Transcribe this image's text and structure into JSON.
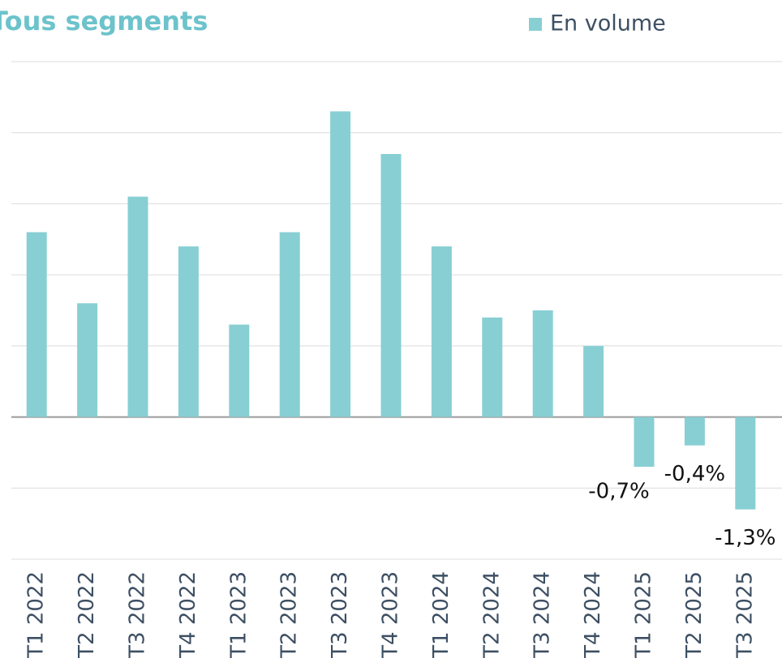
{
  "chart_data": {
    "type": "bar",
    "title": "Tous segments",
    "categories": [
      "T1 2022",
      "T2 2022",
      "T3 2022",
      "T4 2022",
      "T1 2023",
      "T2 2023",
      "T3 2023",
      "T4 2023",
      "T1 2024",
      "T2 2024",
      "T3 2024",
      "T4 2024",
      "T1 2025",
      "T2 2025",
      "T3 2025"
    ],
    "series": [
      {
        "name": "En volume",
        "color": "#88cfd4",
        "values": [
          2.6,
          1.6,
          3.1,
          2.4,
          1.3,
          2.6,
          4.3,
          3.7,
          2.4,
          1.4,
          1.5,
          1.0,
          -0.7,
          -0.4,
          -1.3
        ],
        "value_labels": [
          null,
          null,
          null,
          null,
          null,
          null,
          null,
          null,
          null,
          null,
          null,
          null,
          "-0,7%",
          "-0,4%",
          "-1,3%"
        ]
      }
    ],
    "ylim": [
      -2,
      5
    ],
    "yticks": [
      -2,
      -1,
      0,
      1,
      2,
      3,
      4,
      5
    ],
    "grid": true,
    "legend": "top-right"
  }
}
